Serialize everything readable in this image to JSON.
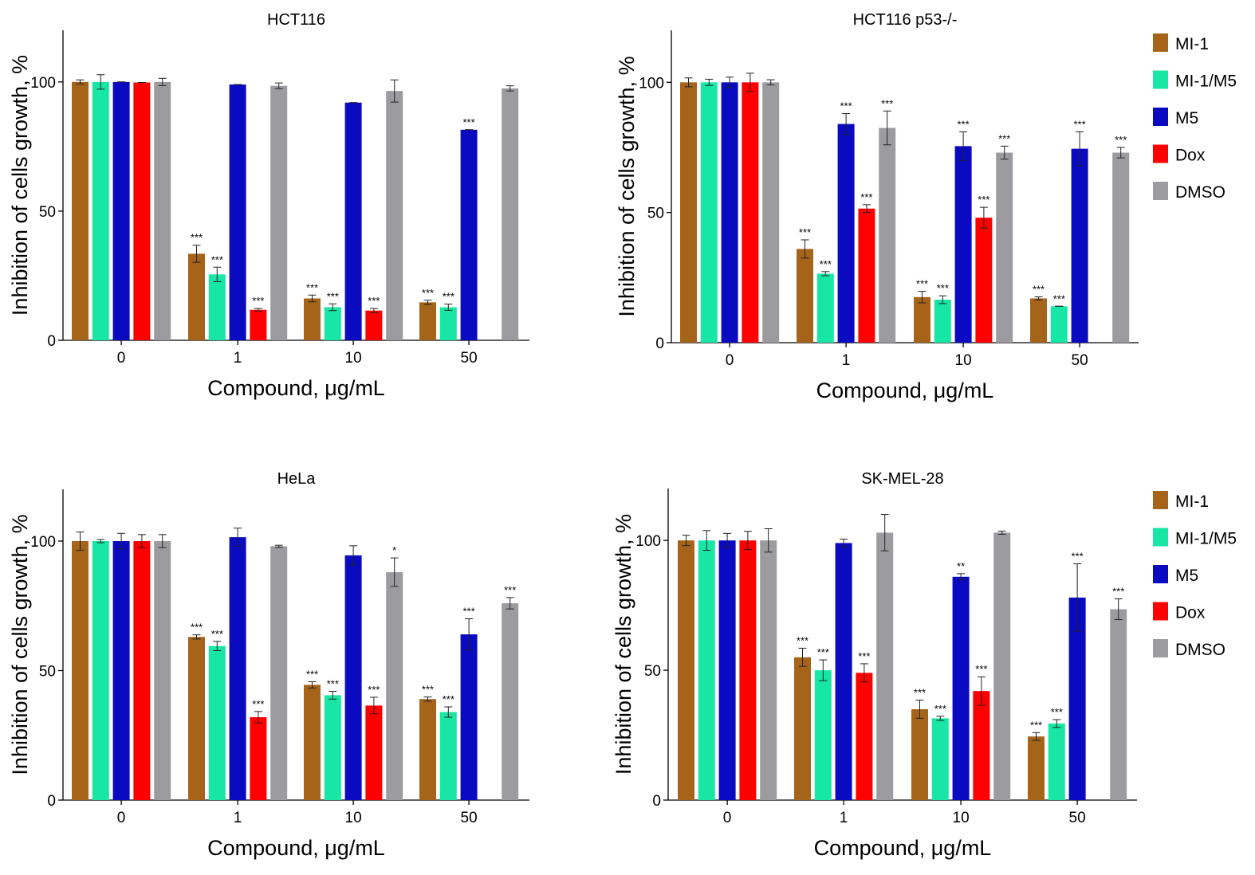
{
  "legend_labels": [
    "MI-1",
    "MI-1/M5",
    "M5",
    "Dox",
    "DMSO"
  ],
  "chart_data": [
    {
      "type": "bar",
      "title": "HCT116",
      "xlabel": "Compound, μg/mL",
      "ylabel": "Inhibition of  cells  growth, %",
      "ylim": [
        0,
        120
      ],
      "yticks": [
        0,
        50,
        100
      ],
      "categories": [
        "0",
        "1",
        "10",
        "50"
      ],
      "series": [
        {
          "name": "MI-1",
          "color": "#a5641a",
          "values": [
            100,
            33.5,
            16.2,
            14.7
          ],
          "errors": [
            0.8,
            3.3,
            1.3,
            0.8
          ],
          "significance": [
            "",
            "***",
            "***",
            "***"
          ]
        },
        {
          "name": "MI-1/M5",
          "color": "#18e6a4",
          "values": [
            100,
            25.5,
            12.8,
            12.8
          ],
          "errors": [
            2.8,
            2.8,
            1.3,
            1.2
          ],
          "significance": [
            "",
            "***",
            "***",
            "***"
          ]
        },
        {
          "name": "M5",
          "color": "#0a0ac0",
          "values": [
            100,
            99,
            92,
            81.5
          ],
          "errors": [
            0,
            0,
            0,
            0
          ],
          "significance": [
            "",
            "",
            "",
            "***"
          ]
        },
        {
          "name": "Dox",
          "color": "#fe0000",
          "values": [
            99.8,
            11.8,
            11.5,
            null
          ],
          "errors": [
            0,
            0.5,
            0.8,
            0
          ],
          "significance": [
            "",
            "***",
            "***",
            ""
          ]
        },
        {
          "name": "DMSO",
          "color": "#9c9ca0",
          "values": [
            100,
            98.5,
            96.5,
            97.5
          ],
          "errors": [
            1.4,
            1.1,
            4.3,
            1.0
          ],
          "significance": [
            "",
            "",
            "",
            ""
          ]
        }
      ]
    },
    {
      "type": "bar",
      "title": "HCT116 p53-/-",
      "xlabel": "Compound, μg/mL",
      "ylabel": "Inhibition of  cells  growth, %",
      "ylim": [
        0,
        120
      ],
      "yticks": [
        0,
        50,
        100
      ],
      "categories": [
        "0",
        "1",
        "10",
        "50"
      ],
      "series": [
        {
          "name": "MI-1",
          "color": "#a5641a",
          "values": [
            100,
            36,
            17.5,
            17
          ],
          "errors": [
            1.7,
            3.5,
            2.2,
            0.6
          ],
          "significance": [
            "",
            "***",
            "***",
            "***"
          ]
        },
        {
          "name": "MI-1/M5",
          "color": "#18e6a4",
          "values": [
            100,
            26.5,
            16.5,
            14
          ],
          "errors": [
            1.2,
            0.8,
            1.5,
            0
          ],
          "significance": [
            "",
            "***",
            "***",
            "***"
          ]
        },
        {
          "name": "M5",
          "color": "#0a0ac0",
          "values": [
            100,
            84,
            75.5,
            74.5
          ],
          "errors": [
            2.0,
            4.0,
            5.5,
            6.5
          ],
          "significance": [
            "",
            "***",
            "***",
            "***"
          ]
        },
        {
          "name": "Dox",
          "color": "#fe0000",
          "values": [
            100,
            51.5,
            48,
            null
          ],
          "errors": [
            3.5,
            1.5,
            4.0,
            0
          ],
          "significance": [
            "",
            "***",
            "***",
            ""
          ]
        },
        {
          "name": "DMSO",
          "color": "#9c9ca0",
          "values": [
            100,
            82.5,
            73,
            73
          ],
          "errors": [
            1.0,
            6.5,
            2.5,
            2.0
          ],
          "significance": [
            "",
            "***",
            "***",
            "***"
          ]
        }
      ]
    },
    {
      "type": "bar",
      "title": "HeLa",
      "xlabel": "Compound, μg/mL",
      "ylabel": "Inhibition of  cells  growth, %",
      "ylim": [
        0,
        120
      ],
      "yticks": [
        0,
        50,
        100
      ],
      "categories": [
        "0",
        "1",
        "10",
        "50"
      ],
      "series": [
        {
          "name": "MI-1",
          "color": "#a5641a",
          "values": [
            100,
            63,
            44.5,
            39
          ],
          "errors": [
            3.5,
            0.8,
            1.2,
            0.8
          ],
          "significance": [
            "",
            "***",
            "***",
            "***"
          ]
        },
        {
          "name": "MI-1/M5",
          "color": "#18e6a4",
          "values": [
            100,
            59.5,
            40.5,
            34
          ],
          "errors": [
            0.6,
            1.8,
            1.5,
            2.0
          ],
          "significance": [
            "",
            "***",
            "***",
            "***"
          ]
        },
        {
          "name": "M5",
          "color": "#0a0ac0",
          "values": [
            100,
            101.5,
            94.5,
            64
          ],
          "errors": [
            3.0,
            3.5,
            3.7,
            6.0
          ],
          "significance": [
            "",
            "",
            "",
            "***"
          ]
        },
        {
          "name": "Dox",
          "color": "#fe0000",
          "values": [
            100,
            32,
            36.5,
            null
          ],
          "errors": [
            2.5,
            2.2,
            3.2,
            0
          ],
          "significance": [
            "",
            "***",
            "***",
            ""
          ]
        },
        {
          "name": "DMSO",
          "color": "#9c9ca0",
          "values": [
            100,
            98,
            88,
            76
          ],
          "errors": [
            2.5,
            0.4,
            5.5,
            2.2
          ],
          "significance": [
            "",
            "",
            "*",
            "***"
          ]
        }
      ]
    },
    {
      "type": "bar",
      "title": "SK-MEL-28",
      "xlabel": "Compound, μg/mL",
      "ylabel": "Inhibition of  cells  growth, %",
      "ylim": [
        0,
        120
      ],
      "yticks": [
        0,
        50,
        100
      ],
      "categories": [
        "0",
        "1",
        "10",
        "50"
      ],
      "series": [
        {
          "name": "MI-1",
          "color": "#a5641a",
          "values": [
            100,
            55,
            35,
            24.5
          ],
          "errors": [
            2.0,
            3.5,
            3.5,
            1.5
          ],
          "significance": [
            "",
            "***",
            "***",
            "***"
          ]
        },
        {
          "name": "MI-1/M5",
          "color": "#18e6a4",
          "values": [
            100,
            50,
            31.5,
            29.5
          ],
          "errors": [
            3.8,
            4.0,
            0.8,
            1.5
          ],
          "significance": [
            "",
            "***",
            "***",
            "***"
          ]
        },
        {
          "name": "M5",
          "color": "#0a0ac0",
          "values": [
            100,
            99,
            86,
            78
          ],
          "errors": [
            2.7,
            1.5,
            1.2,
            13.0
          ],
          "significance": [
            "",
            "",
            "**",
            "***"
          ]
        },
        {
          "name": "Dox",
          "color": "#fe0000",
          "values": [
            100,
            49,
            42,
            null
          ],
          "errors": [
            3.5,
            3.5,
            5.5,
            0
          ],
          "significance": [
            "",
            "***",
            "***",
            ""
          ]
        },
        {
          "name": "DMSO",
          "color": "#9c9ca0",
          "values": [
            100,
            103,
            103,
            73.5
          ],
          "errors": [
            4.5,
            7.0,
            0.6,
            4.0
          ],
          "significance": [
            "",
            "",
            "",
            "***"
          ]
        }
      ]
    }
  ]
}
